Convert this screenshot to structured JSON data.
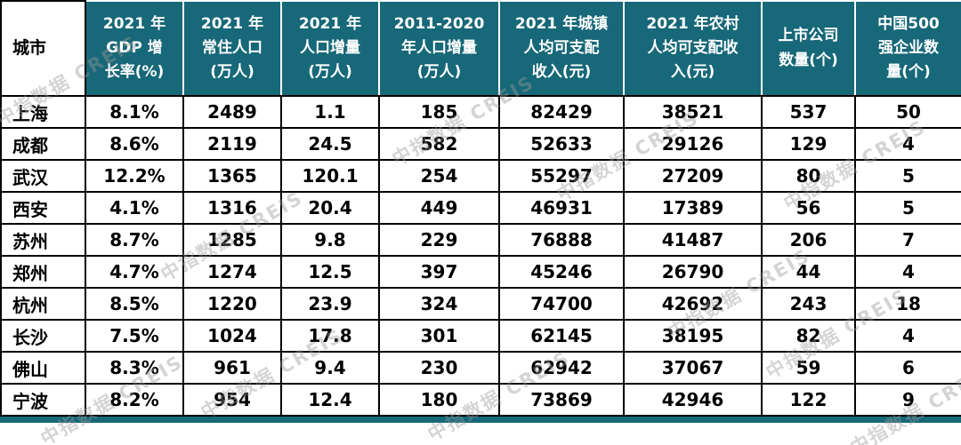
{
  "watermark": {
    "text": "中指数据 CREIS"
  },
  "colors": {
    "header_bg": "#176878",
    "header_text": "#ffffff",
    "body_text": "#000000",
    "border": "#000000",
    "bottom_bar": "#176878",
    "watermark": "#9a9a9a"
  },
  "chart_data": {
    "type": "table",
    "corner_header": "城市",
    "column_headers": [
      [
        "2021 年",
        "GDP 增",
        "长率(%)"
      ],
      [
        "2021 年",
        "常住人口",
        "(万人)"
      ],
      [
        "2021 年",
        "人口增量",
        "(万人)"
      ],
      [
        "2011-2020",
        "年人口增量",
        "(万人)"
      ],
      [
        "2021 年城镇",
        "人均可支配",
        "收入(元)"
      ],
      [
        "2021 年农村",
        "人均可支配收",
        "入(元)"
      ],
      [
        "上市公司",
        "数量(个)"
      ],
      [
        "中国500",
        "强企业数",
        "量(个)"
      ]
    ],
    "rows": [
      {
        "city": "上海",
        "values": [
          "8.1%",
          "2489",
          "1.1",
          "185",
          "82429",
          "38521",
          "537",
          "50"
        ]
      },
      {
        "city": "成都",
        "values": [
          "8.6%",
          "2119",
          "24.5",
          "582",
          "52633",
          "29126",
          "129",
          "4"
        ]
      },
      {
        "city": "武汉",
        "values": [
          "12.2%",
          "1365",
          "120.1",
          "254",
          "55297",
          "27209",
          "80",
          "5"
        ]
      },
      {
        "city": "西安",
        "values": [
          "4.1%",
          "1316",
          "20.4",
          "449",
          "46931",
          "17389",
          "56",
          "5"
        ]
      },
      {
        "city": "苏州",
        "values": [
          "8.7%",
          "1285",
          "9.8",
          "229",
          "76888",
          "41487",
          "206",
          "7"
        ]
      },
      {
        "city": "郑州",
        "values": [
          "4.7%",
          "1274",
          "12.5",
          "397",
          "45246",
          "26790",
          "44",
          "4"
        ]
      },
      {
        "city": "杭州",
        "values": [
          "8.5%",
          "1220",
          "23.9",
          "324",
          "74700",
          "42692",
          "243",
          "18"
        ]
      },
      {
        "city": "长沙",
        "values": [
          "7.5%",
          "1024",
          "17.8",
          "301",
          "62145",
          "38195",
          "82",
          "4"
        ]
      },
      {
        "city": "佛山",
        "values": [
          "8.3%",
          "961",
          "9.4",
          "230",
          "62942",
          "37067",
          "59",
          "6"
        ]
      },
      {
        "city": "宁波",
        "values": [
          "8.2%",
          "954",
          "12.4",
          "180",
          "73869",
          "42946",
          "122",
          "9"
        ]
      }
    ]
  }
}
